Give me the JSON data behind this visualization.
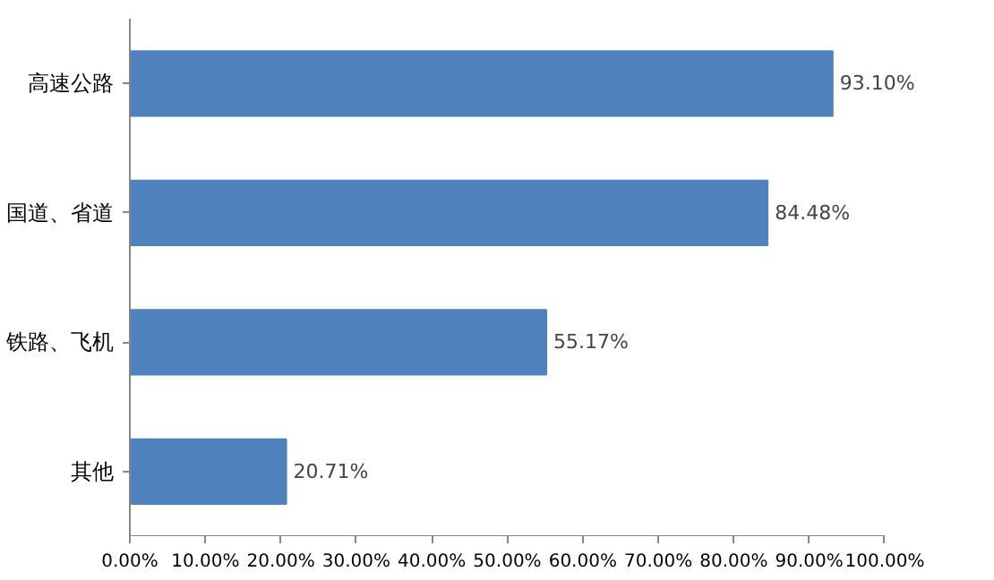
{
  "chart_data": {
    "type": "bar",
    "orientation": "horizontal",
    "categories": [
      "高速公路",
      "国道、省道",
      "铁路、飞机",
      "其他"
    ],
    "values": [
      93.1,
      84.48,
      55.17,
      20.71
    ],
    "value_labels": [
      "93.10%",
      "84.48%",
      "55.17%",
      "20.71%"
    ],
    "color": "#4f81bd",
    "xlim": [
      0,
      100
    ],
    "xticks": [
      {
        "value": 0,
        "label": "0.00%"
      },
      {
        "value": 10,
        "label": "10.00%"
      },
      {
        "value": 20,
        "label": "20.00%"
      },
      {
        "value": 30,
        "label": "30.00%"
      },
      {
        "value": 40,
        "label": "40.00%"
      },
      {
        "value": 50,
        "label": "50.00%"
      },
      {
        "value": 60,
        "label": "60.00%"
      },
      {
        "value": 70,
        "label": "70.00%"
      },
      {
        "value": 80,
        "label": "80.00%"
      },
      {
        "value": 90,
        "label": "90.00%"
      },
      {
        "value": 100,
        "label": "100.00%"
      }
    ],
    "grid": false
  }
}
